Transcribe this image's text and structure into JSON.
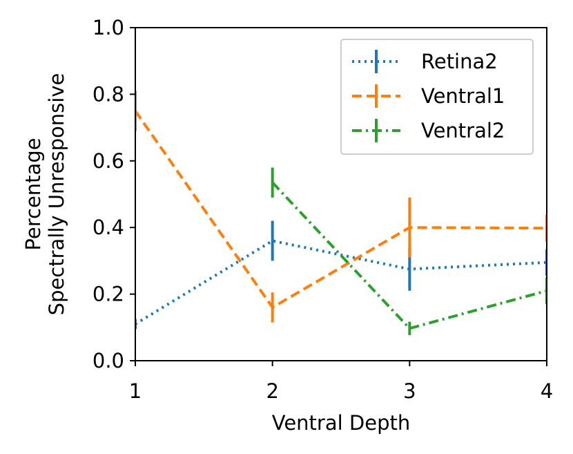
{
  "chart_data": {
    "type": "line",
    "title": "",
    "xlabel": "Ventral Depth",
    "ylabel_lines": [
      "Percentage",
      "Spectrally Unresponsive"
    ],
    "xlim": [
      1,
      4
    ],
    "ylim": [
      0.0,
      1.0
    ],
    "xticks": [
      1,
      2,
      3,
      4
    ],
    "xtick_labels": [
      "1",
      "2",
      "3",
      "4"
    ],
    "yticks": [
      0.0,
      0.2,
      0.4,
      0.6,
      0.8,
      1.0
    ],
    "ytick_labels": [
      "0.0",
      "0.2",
      "0.4",
      "0.6",
      "0.8",
      "1.0"
    ],
    "grid": false,
    "legend_position": "top-right",
    "series": [
      {
        "name": "Retina2",
        "color": "#1f77b4",
        "linestyle": "dotted",
        "x": [
          1,
          2,
          3,
          4
        ],
        "y": [
          0.11,
          0.36,
          0.275,
          0.295
        ],
        "err": [
          0.015,
          0.06,
          0.065,
          0.04
        ]
      },
      {
        "name": "Ventral1",
        "color": "#ff7f0e",
        "linestyle": "dashed",
        "x": [
          1,
          2,
          3,
          4
        ],
        "y": [
          0.75,
          0.16,
          0.4,
          0.398
        ],
        "err": [
          0.06,
          0.045,
          0.09,
          0.04
        ]
      },
      {
        "name": "Ventral2",
        "color": "#2ca02c",
        "linestyle": "dashdot",
        "x": [
          2,
          3,
          4
        ],
        "y": [
          0.535,
          0.097,
          0.21
        ],
        "err": [
          0.045,
          0.02,
          0.04
        ]
      }
    ]
  }
}
